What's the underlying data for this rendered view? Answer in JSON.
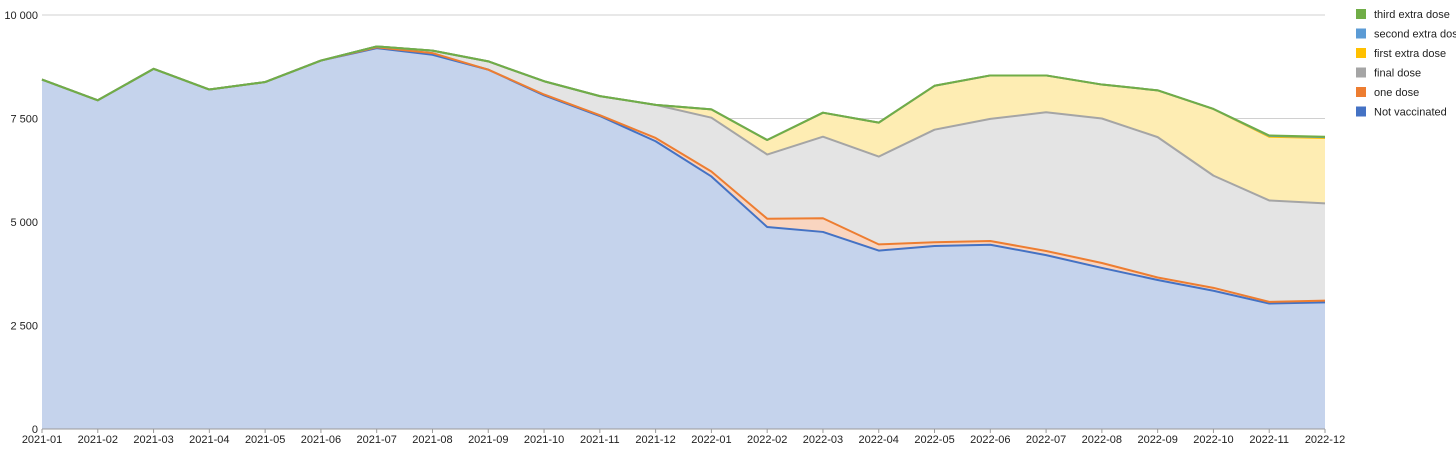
{
  "chart_data": {
    "type": "area",
    "stacked": true,
    "title": "",
    "xlabel": "",
    "ylabel": "",
    "ylim": [
      0,
      10000
    ],
    "yticks": [
      0,
      2500,
      5000,
      7500,
      10000
    ],
    "ytick_labels": [
      "0",
      "2 500",
      "5 000",
      "7 500",
      "10 000"
    ],
    "grid": true,
    "legend_position": "right",
    "x": [
      "2021-01",
      "2021-02",
      "2021-03",
      "2021-04",
      "2021-05",
      "2021-06",
      "2021-07",
      "2021-08",
      "2021-09",
      "2021-10",
      "2021-11",
      "2021-12",
      "2022-01",
      "2022-02",
      "2022-03",
      "2022-04",
      "2022-05",
      "2022-06",
      "2022-07",
      "2022-08",
      "2022-09",
      "2022-10",
      "2022-11",
      "2022-12"
    ],
    "series": [
      {
        "name": "Not vaccinated",
        "color": "#4472C4",
        "fill": "#C5D3EC",
        "values": [
          8440,
          7940,
          8700,
          8200,
          8380,
          8900,
          9200,
          9040,
          8680,
          8060,
          7560,
          6950,
          6100,
          4880,
          4760,
          4310,
          4420,
          4450,
          4200,
          3890,
          3600,
          3340,
          3030,
          3060
        ]
      },
      {
        "name": "one dose",
        "color": "#ED7D31",
        "fill": "#F9D5C0",
        "values": [
          0,
          0,
          0,
          0,
          0,
          0,
          20,
          40,
          0,
          20,
          20,
          80,
          120,
          200,
          330,
          150,
          90,
          90,
          100,
          120,
          60,
          70,
          40,
          40
        ]
      },
      {
        "name": "final dose",
        "color": "#A5A5A5",
        "fill": "#E4E4E4",
        "values": [
          0,
          0,
          0,
          0,
          0,
          0,
          20,
          60,
          200,
          320,
          460,
          800,
          1300,
          1550,
          1970,
          2120,
          2720,
          2950,
          3350,
          3490,
          3390,
          2710,
          2450,
          2350
        ]
      },
      {
        "name": "first extra dose",
        "color": "#FFC000",
        "fill": "#FEEDB3",
        "values": [
          0,
          0,
          0,
          0,
          0,
          0,
          0,
          0,
          0,
          0,
          0,
          0,
          200,
          350,
          580,
          820,
          1060,
          1050,
          890,
          820,
          1130,
          1610,
          1540,
          1580
        ]
      },
      {
        "name": "second extra dose",
        "color": "#5B9BD5",
        "fill": "#CFE0F2",
        "values": [
          0,
          0,
          0,
          0,
          0,
          0,
          0,
          0,
          0,
          0,
          0,
          0,
          0,
          0,
          0,
          0,
          0,
          0,
          0,
          0,
          0,
          0,
          20,
          20
        ]
      },
      {
        "name": "third extra dose",
        "color": "#70AD47",
        "fill": "#D4E8C5",
        "values": [
          0,
          0,
          0,
          0,
          0,
          0,
          0,
          0,
          0,
          0,
          0,
          0,
          0,
          0,
          0,
          0,
          0,
          0,
          0,
          0,
          0,
          0,
          10,
          10
        ]
      }
    ],
    "legend_order": [
      "third extra dose",
      "second extra dose",
      "first extra dose",
      "final dose",
      "one dose",
      "Not vaccinated"
    ],
    "colors": {
      "grid": "#D0D0D0",
      "axis": "#9A9A9A"
    }
  }
}
